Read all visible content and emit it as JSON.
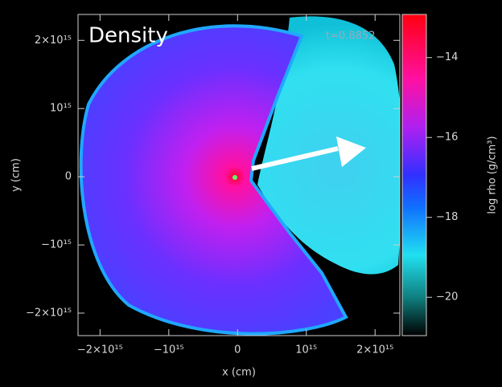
{
  "chart_data": {
    "type": "image",
    "title": "Density",
    "annotation": "t=0.8852",
    "x_label": "x (cm)",
    "y_label": "y (cm)",
    "xlim": [
      -2320000000000000.0,
      2360000000000000.0
    ],
    "ylim": [
      -2330000000000000.0,
      2380000000000000.0
    ],
    "xticks": [
      {
        "value": -2000000000000000.0,
        "label": "−2×10¹⁵"
      },
      {
        "value": -1000000000000000.0,
        "label": "−10¹⁵"
      },
      0,
      {
        "value": 1000000000000000.0,
        "label": "10¹⁵"
      },
      {
        "value": 2000000000000000.0,
        "label": "2×10¹⁵"
      }
    ],
    "yticks": [
      {
        "value": -2000000000000000.0,
        "label": "−2×10¹⁵"
      },
      {
        "value": -1000000000000000.0,
        "label": "−10¹⁵"
      },
      0,
      {
        "value": 1000000000000000.0,
        "label": "10¹⁵"
      },
      {
        "value": 2000000000000000.0,
        "label": "2×10¹⁵"
      }
    ],
    "colorbar": {
      "label": "log rho (g/cm³)",
      "lim": [
        -20.96,
        -12.92
      ],
      "ticks": [
        {
          "value": -20,
          "label": "−20"
        },
        {
          "value": -18,
          "label": "−18"
        },
        {
          "value": -16,
          "label": "−16"
        },
        {
          "value": -14,
          "label": "−14"
        }
      ]
    }
  }
}
